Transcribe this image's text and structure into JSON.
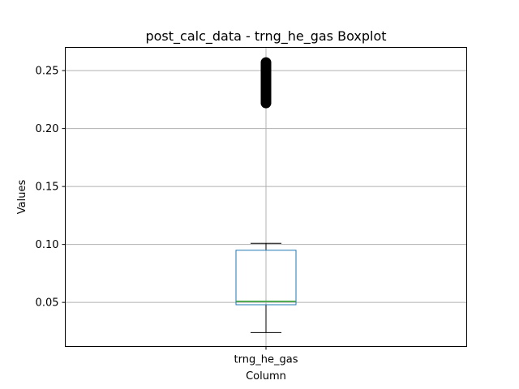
{
  "chart_data": {
    "type": "boxplot",
    "title": "post_calc_data - trng_he_gas Boxplot",
    "xlabel": "Column",
    "ylabel": "Values",
    "categories": [
      "trng_he_gas"
    ],
    "ylim": [
      0.012,
      0.27
    ],
    "yticks": [
      0.05,
      0.1,
      0.15,
      0.2,
      0.25
    ],
    "ytick_labels": [
      "0.05",
      "0.10",
      "0.15",
      "0.20",
      "0.25"
    ],
    "grid": true,
    "boxes": [
      {
        "name": "trng_he_gas",
        "whisker_low": 0.024,
        "q1": 0.048,
        "median": 0.051,
        "q3": 0.095,
        "whisker_high": 0.101,
        "outliers_range": [
          0.222,
          0.257
        ]
      }
    ],
    "colors": {
      "box": "#1f77b4",
      "median": "#2ca02c",
      "whisker": "#000000",
      "grid": "#b0b0b0",
      "outlier": "#000000"
    }
  }
}
